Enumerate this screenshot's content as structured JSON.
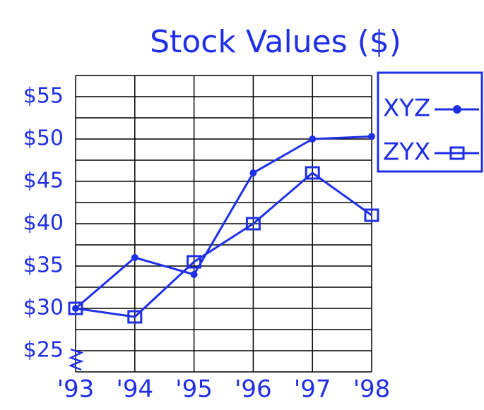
{
  "chart_data": {
    "type": "line",
    "title": "Stock Values ($)",
    "categories": [
      "'93",
      "'94",
      "'95",
      "'96",
      "'97",
      "'98"
    ],
    "series": [
      {
        "name": "XYZ",
        "color": "#1f2fe6",
        "marker": "circle",
        "values": [
          30,
          36,
          34,
          46,
          50,
          50.3
        ]
      },
      {
        "name": "ZYX",
        "color": "#1f2fe6",
        "marker": "square",
        "values": [
          30,
          29,
          35.5,
          40,
          46,
          41
        ]
      }
    ],
    "ylim": [
      22.5,
      57.5
    ],
    "yticks": [
      {
        "value": 25,
        "label": "$25"
      },
      {
        "value": 30,
        "label": "$30"
      },
      {
        "value": 35,
        "label": "$35"
      },
      {
        "value": 40,
        "label": "$40"
      },
      {
        "value": 45,
        "label": "$45"
      },
      {
        "value": 50,
        "label": "$50"
      },
      {
        "value": 55,
        "label": "$55"
      }
    ],
    "minor_yticks": [
      22.5,
      27.5,
      32.5,
      37.5,
      42.5,
      47.5,
      52.5,
      57.5
    ],
    "grid": true,
    "legend": "right"
  }
}
